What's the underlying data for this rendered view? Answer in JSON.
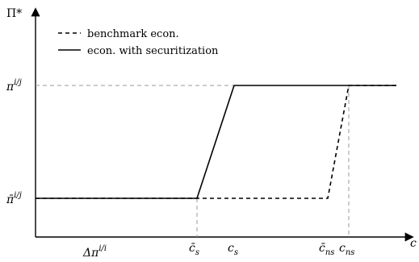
{
  "chart_data": {
    "type": "line",
    "ylabel": "Π*",
    "xlabel": "c",
    "y_ticks": [
      {
        "key": "low",
        "label": "π̄^{i/j}"
      },
      {
        "key": "high",
        "label": "π^{i/j}"
      }
    ],
    "x_ticks": [
      {
        "key": "cs_bar",
        "label": "c̄_s"
      },
      {
        "key": "cs",
        "label": "c_s"
      },
      {
        "key": "cns_bar",
        "label": "c̄_ns"
      },
      {
        "key": "cns",
        "label": "c_ns"
      }
    ],
    "x_annotation": "Δπ^{i/i}",
    "legend": {
      "position": "top-left",
      "items": [
        {
          "label": "benchmark econ.",
          "style": "dashed"
        },
        {
          "label": "econ. with securitization",
          "style": "solid"
        }
      ]
    },
    "series": [
      {
        "name": "benchmark econ.",
        "style": "dashed",
        "points": [
          [
            "start",
            "low"
          ],
          [
            "cns_bar",
            "low"
          ],
          [
            "cns",
            "high"
          ],
          [
            "end",
            "high"
          ]
        ]
      },
      {
        "name": "econ. with securitization",
        "style": "solid",
        "points": [
          [
            "start",
            "low"
          ],
          [
            "cs_bar",
            "low"
          ],
          [
            "cs",
            "high"
          ],
          [
            "end",
            "high"
          ]
        ]
      }
    ]
  }
}
